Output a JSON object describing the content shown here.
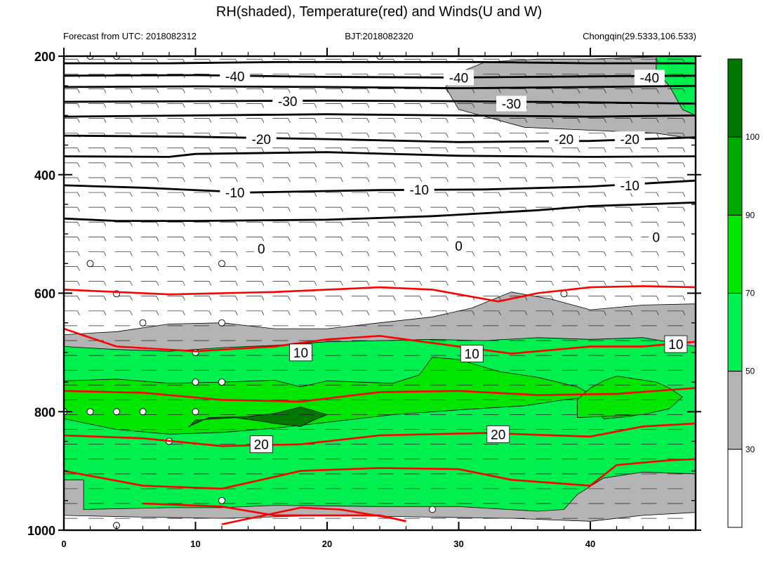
{
  "chart_data": {
    "type": "heatmap",
    "title": "RH(shaded), Temperature(red) and Winds(U and W)",
    "subtitle_left": "Forecast from UTC: 2018082312",
    "subtitle_center": "BJT:2018082320",
    "subtitle_right": "Chongqin(29.5333,106.533)",
    "xlabel": "",
    "ylabel": "",
    "xlim": [
      0,
      48
    ],
    "ylim": [
      1000,
      200
    ],
    "x_ticks": [
      0,
      10,
      20,
      30,
      40
    ],
    "y_ticks": [
      200,
      400,
      600,
      800,
      1000
    ],
    "colorbar": {
      "levels": [
        30,
        50,
        70,
        90,
        100
      ],
      "colors": [
        "#ffffff",
        "#b4b4b4",
        "#00f050",
        "#00e600",
        "#00aa00",
        "#007800"
      ]
    },
    "rh_regions": [
      {
        "level": 50,
        "color": "#b4b4b4",
        "points": [
          [
            0,
            670
          ],
          [
            4,
            665
          ],
          [
            8,
            652
          ],
          [
            12,
            650
          ],
          [
            16,
            660
          ],
          [
            20,
            660
          ],
          [
            24,
            650
          ],
          [
            28,
            640
          ],
          [
            31,
            625
          ],
          [
            34,
            598
          ],
          [
            37,
            610
          ],
          [
            40,
            628
          ],
          [
            44,
            620
          ],
          [
            48,
            618
          ],
          [
            48,
            970
          ],
          [
            44,
            975
          ],
          [
            40,
            985
          ],
          [
            34,
            980
          ],
          [
            28,
            978
          ],
          [
            20,
            975
          ],
          [
            12,
            980
          ],
          [
            6,
            978
          ],
          [
            0,
            975
          ]
        ]
      },
      {
        "level": 50,
        "color": "#b4b4b4",
        "points": [
          [
            29,
            252
          ],
          [
            30,
            228
          ],
          [
            32,
            210
          ],
          [
            36,
            205
          ],
          [
            40,
            205
          ],
          [
            44,
            202
          ],
          [
            46,
            200
          ],
          [
            48,
            200
          ],
          [
            48,
            340
          ],
          [
            45,
            330
          ],
          [
            40,
            325
          ],
          [
            35,
            320
          ],
          [
            30,
            290
          ]
        ]
      },
      {
        "level": 70,
        "color": "#00f050",
        "points": [
          [
            0,
            690
          ],
          [
            4,
            695
          ],
          [
            8,
            698
          ],
          [
            12,
            692
          ],
          [
            16,
            688
          ],
          [
            20,
            682
          ],
          [
            24,
            680
          ],
          [
            28,
            678
          ],
          [
            32,
            680
          ],
          [
            36,
            675
          ],
          [
            40,
            678
          ],
          [
            44,
            675
          ],
          [
            48,
            690
          ],
          [
            48,
            905
          ],
          [
            44,
            902
          ],
          [
            41,
            912
          ],
          [
            39,
            940
          ],
          [
            38,
            965
          ],
          [
            36,
            968
          ],
          [
            30,
            960
          ],
          [
            24,
            960
          ],
          [
            16,
            958
          ],
          [
            12,
            962
          ],
          [
            8,
            962
          ],
          [
            1.5,
            965
          ],
          [
            1.5,
            915
          ],
          [
            0,
            915
          ]
        ]
      },
      {
        "level": 70,
        "color": "#00f050",
        "points": [
          [
            45,
            200
          ],
          [
            48,
            200
          ],
          [
            48,
            300
          ],
          [
            47,
            290
          ],
          [
            46,
            250
          ],
          [
            45,
            225
          ]
        ]
      },
      {
        "level": 90,
        "color": "#00e600",
        "points": [
          [
            0,
            748
          ],
          [
            4,
            745
          ],
          [
            8,
            752
          ],
          [
            12,
            750
          ],
          [
            16,
            747
          ],
          [
            18,
            758
          ],
          [
            20,
            748
          ],
          [
            25,
            752
          ],
          [
            27,
            738
          ],
          [
            28,
            708
          ],
          [
            30,
            712
          ],
          [
            33,
            732
          ],
          [
            36,
            742
          ],
          [
            39,
            758
          ],
          [
            40,
            770
          ],
          [
            41,
            780
          ],
          [
            44,
            790
          ],
          [
            46,
            795
          ],
          [
            43,
            808
          ],
          [
            41,
            812
          ],
          [
            40,
            775
          ],
          [
            38,
            780
          ],
          [
            35,
            790
          ],
          [
            30,
            797
          ],
          [
            25,
            805
          ],
          [
            20,
            818
          ],
          [
            16,
            828
          ],
          [
            12,
            835
          ],
          [
            8,
            838
          ],
          [
            4,
            830
          ],
          [
            0,
            812
          ]
        ]
      },
      {
        "level": 90,
        "color": "#00e600",
        "points": [
          [
            39,
            780
          ],
          [
            40,
            760
          ],
          [
            41,
            748
          ],
          [
            42,
            740
          ],
          [
            45,
            750
          ],
          [
            46,
            760
          ],
          [
            47,
            775
          ],
          [
            46,
            795
          ],
          [
            44,
            805
          ],
          [
            41,
            808
          ],
          [
            39,
            810
          ]
        ]
      },
      {
        "level": 100,
        "color": "#007800",
        "points": [
          [
            9.5,
            826
          ],
          [
            10,
            814
          ],
          [
            13,
            810
          ],
          [
            15,
            816
          ],
          [
            16,
            820
          ],
          [
            18,
            825
          ],
          [
            19,
            814
          ],
          [
            20,
            805
          ],
          [
            18,
            792
          ],
          [
            16,
            803
          ],
          [
            14,
            808
          ],
          [
            11,
            810
          ],
          [
            9.5,
            825
          ]
        ]
      }
    ],
    "temperature_contours": [
      {
        "label": "0",
        "color": "#ff0000",
        "points": [
          [
            0,
            594
          ],
          [
            8,
            602
          ],
          [
            16,
            598
          ],
          [
            24,
            590
          ],
          [
            28,
            594
          ],
          [
            33,
            614
          ],
          [
            36,
            600
          ],
          [
            40,
            590
          ],
          [
            44,
            588
          ],
          [
            48,
            590
          ]
        ]
      },
      {
        "label": "10",
        "color": "#ff0000",
        "points": [
          [
            0,
            660
          ],
          [
            4,
            690
          ],
          [
            10,
            698
          ],
          [
            16,
            690
          ],
          [
            20,
            678
          ],
          [
            24,
            672
          ],
          [
            28,
            684
          ],
          [
            34,
            702
          ],
          [
            40,
            690
          ],
          [
            44,
            690
          ],
          [
            48,
            682
          ]
        ]
      },
      {
        "label": "",
        "color": "#ff0000",
        "points": [
          [
            0,
            765
          ],
          [
            6,
            768
          ],
          [
            12,
            780
          ],
          [
            18,
            783
          ],
          [
            24,
            767
          ],
          [
            30,
            765
          ],
          [
            36,
            772
          ],
          [
            42,
            770
          ],
          [
            48,
            760
          ]
        ]
      },
      {
        "label": "20",
        "color": "#ff0000",
        "points": [
          [
            0,
            840
          ],
          [
            6,
            845
          ],
          [
            12,
            858
          ],
          [
            18,
            855
          ],
          [
            24,
            840
          ],
          [
            32,
            836
          ],
          [
            40,
            842
          ],
          [
            44,
            825
          ],
          [
            48,
            820
          ]
        ]
      },
      {
        "label": "",
        "color": "#ff0000",
        "points": [
          [
            0,
            900
          ],
          [
            6,
            925
          ],
          [
            12,
            930
          ],
          [
            18,
            900
          ],
          [
            24,
            895
          ],
          [
            30,
            897
          ],
          [
            34,
            915
          ],
          [
            40,
            925
          ],
          [
            42,
            890
          ],
          [
            46,
            882
          ],
          [
            48,
            880
          ]
        ]
      },
      {
        "label": "",
        "color": "#ff0000",
        "points": [
          [
            6,
            955
          ],
          [
            12,
            960
          ],
          [
            16,
            975
          ],
          [
            20,
            975
          ],
          [
            24,
            975
          ],
          [
            26,
            985
          ]
        ]
      },
      {
        "label": "",
        "color": "#ff0000",
        "points": [
          [
            12,
            990
          ],
          [
            18,
            962
          ],
          [
            21,
            965
          ],
          [
            25,
            980
          ],
          [
            26,
            985
          ]
        ]
      }
    ],
    "temperature_labels": [
      {
        "text": "10",
        "x": 18,
        "y": 700
      },
      {
        "text": "10",
        "x": 31,
        "y": 702
      },
      {
        "text": "10",
        "x": 46.5,
        "y": 686
      },
      {
        "text": "20",
        "x": 15,
        "y": 855
      },
      {
        "text": "20",
        "x": 33,
        "y": 838
      }
    ],
    "cold_contours": [
      {
        "points": [
          [
            0,
            212
          ],
          [
            8,
            212
          ],
          [
            16,
            210
          ],
          [
            24,
            210
          ],
          [
            32,
            210
          ],
          [
            40,
            212
          ],
          [
            48,
            212
          ]
        ]
      },
      {
        "points": [
          [
            0,
            233
          ],
          [
            10,
            232
          ],
          [
            20,
            235
          ],
          [
            30,
            236
          ],
          [
            40,
            234
          ],
          [
            48,
            233
          ]
        ]
      },
      {
        "points": [
          [
            0,
            252
          ],
          [
            10,
            251
          ],
          [
            20,
            252
          ],
          [
            30,
            254
          ],
          [
            40,
            252
          ],
          [
            48,
            250
          ]
        ]
      },
      {
        "points": [
          [
            0,
            277
          ],
          [
            10,
            276
          ],
          [
            20,
            275
          ],
          [
            30,
            276
          ],
          [
            40,
            278
          ],
          [
            48,
            280
          ]
        ]
      },
      {
        "points": [
          [
            0,
            302
          ],
          [
            10,
            300
          ],
          [
            20,
            298
          ],
          [
            30,
            300
          ],
          [
            40,
            302
          ],
          [
            48,
            300
          ]
        ]
      },
      {
        "points": [
          [
            0,
            334
          ],
          [
            10,
            336
          ],
          [
            20,
            340
          ],
          [
            30,
            345
          ],
          [
            40,
            343
          ],
          [
            48,
            337
          ]
        ]
      },
      {
        "points": [
          [
            0,
            369
          ],
          [
            8,
            370
          ],
          [
            10,
            365
          ],
          [
            20,
            362
          ],
          [
            30,
            368
          ],
          [
            40,
            370
          ],
          [
            48,
            369
          ]
        ]
      },
      {
        "points": [
          [
            0,
            418
          ],
          [
            6,
            422
          ],
          [
            14,
            430
          ],
          [
            24,
            426
          ],
          [
            32,
            425
          ],
          [
            40,
            420
          ],
          [
            48,
            410
          ]
        ]
      },
      {
        "points": [
          [
            0,
            474
          ],
          [
            4,
            478
          ],
          [
            10,
            478
          ],
          [
            20,
            476
          ],
          [
            28,
            470
          ],
          [
            36,
            460
          ],
          [
            40,
            453
          ],
          [
            48,
            447
          ]
        ]
      }
    ],
    "cold_labels": [
      {
        "text": "-40",
        "x": 13,
        "y": 234
      },
      {
        "text": "-40",
        "x": 30,
        "y": 236
      },
      {
        "text": "-40",
        "x": 44.5,
        "y": 236
      },
      {
        "text": "-30",
        "x": 17,
        "y": 276
      },
      {
        "text": "-30",
        "x": 34,
        "y": 280
      },
      {
        "text": "-20",
        "x": 15,
        "y": 340
      },
      {
        "text": "-20",
        "x": 38,
        "y": 340
      },
      {
        "text": "-20",
        "x": 43,
        "y": 340
      },
      {
        "text": "-10",
        "x": 13,
        "y": 430
      },
      {
        "text": "-10",
        "x": 27,
        "y": 425
      },
      {
        "text": "-10",
        "x": 43,
        "y": 418
      },
      {
        "text": "0",
        "x": 15,
        "y": 525
      },
      {
        "text": "0",
        "x": 30,
        "y": 520
      },
      {
        "text": "0",
        "x": 45,
        "y": 505
      }
    ],
    "calm_markers": [
      [
        2,
        200
      ],
      [
        4,
        200
      ],
      [
        24,
        200
      ],
      [
        2,
        550
      ],
      [
        12,
        550
      ],
      [
        4,
        601
      ],
      [
        38,
        601
      ],
      [
        6,
        650
      ],
      [
        12,
        650
      ],
      [
        10,
        700
      ],
      [
        10,
        750
      ],
      [
        12,
        750
      ],
      [
        0,
        800
      ],
      [
        2,
        800
      ],
      [
        4,
        800
      ],
      [
        6,
        800
      ],
      [
        10,
        800
      ],
      [
        8,
        850
      ],
      [
        12,
        950
      ],
      [
        28,
        965
      ],
      [
        4,
        992
      ]
    ]
  }
}
